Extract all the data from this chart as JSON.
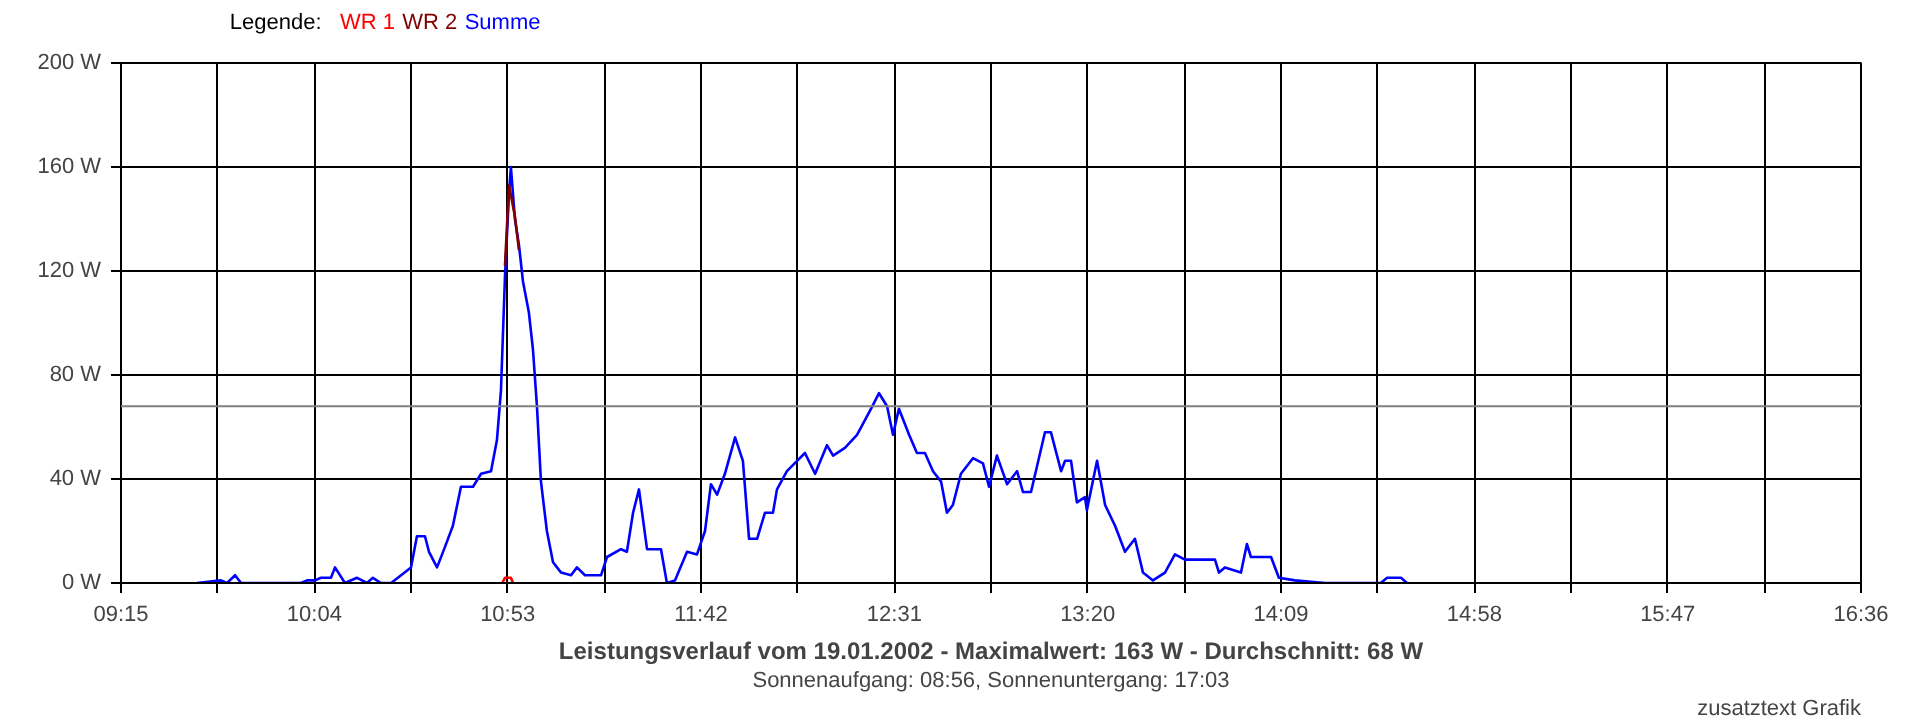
{
  "chart_data": {
    "type": "line",
    "title": "Leistungsverlauf vom 19.01.2002 - Maximalwert: 163 W - Durchschnitt: 68 W",
    "subtitle": "Sonnenaufgang: 08:56, Sonnenuntergang: 17:03",
    "legend_title": "Legende:",
    "annotations": [
      "zusatztext Grafik"
    ],
    "xlim": [
      9.25,
      16.6
    ],
    "ylim": [
      0,
      200
    ],
    "xticks": [
      {
        "value": 9.25,
        "label": "09:15"
      },
      {
        "value": 9.6583,
        "label": null
      },
      {
        "value": 10.0667,
        "label": "10:04"
      },
      {
        "value": 10.475,
        "label": null
      },
      {
        "value": 10.8833,
        "label": "10:53"
      },
      {
        "value": 11.2917,
        "label": null
      },
      {
        "value": 11.7,
        "label": "11:42"
      },
      {
        "value": 12.1083,
        "label": null
      },
      {
        "value": 12.5167,
        "label": "12:31"
      },
      {
        "value": 12.925,
        "label": null
      },
      {
        "value": 13.3333,
        "label": "13:20"
      },
      {
        "value": 13.7417,
        "label": null
      },
      {
        "value": 14.15,
        "label": "14:09"
      },
      {
        "value": 14.5583,
        "label": null
      },
      {
        "value": 14.9667,
        "label": "14:58"
      },
      {
        "value": 15.375,
        "label": null
      },
      {
        "value": 15.7833,
        "label": "15:47"
      },
      {
        "value": 16.1917,
        "label": null
      },
      {
        "value": 16.6,
        "label": "16:36"
      }
    ],
    "yticks": [
      {
        "value": 0,
        "label": "0 W"
      },
      {
        "value": 40,
        "label": "40 W"
      },
      {
        "value": 80,
        "label": "80 W"
      },
      {
        "value": 120,
        "label": "120 W"
      },
      {
        "value": 160,
        "label": "160 W"
      },
      {
        "value": 200,
        "label": "200 W"
      }
    ],
    "grid": true,
    "legend": "top left",
    "line_style": "solid",
    "ref_lines": [
      {
        "axis": "y",
        "value": 68,
        "color": "#808080"
      }
    ],
    "series": [
      {
        "name": "WR 1",
        "color": "#ff0000",
        "x": [
          10.86,
          10.872,
          10.897,
          10.906
        ],
        "values": [
          0,
          2,
          2,
          0
        ]
      },
      {
        "name": "WR 2",
        "color": "#800000",
        "x": [
          10.872,
          10.889,
          10.914,
          10.931
        ],
        "values": [
          122,
          153,
          141,
          128
        ]
      },
      {
        "name": "Summe",
        "color": "#0000ff",
        "x": [
          9.571,
          9.672,
          9.698,
          9.732,
          9.757,
          9.841,
          10.01,
          10.036,
          10.069,
          10.095,
          10.137,
          10.154,
          10.196,
          10.247,
          10.289,
          10.314,
          10.348,
          10.391,
          10.433,
          10.475,
          10.5,
          10.534,
          10.551,
          10.585,
          10.619,
          10.652,
          10.686,
          10.737,
          10.771,
          10.813,
          10.838,
          10.855,
          10.872,
          10.889,
          10.897,
          10.914,
          10.931,
          10.948,
          10.973,
          10.99,
          11.007,
          11.024,
          11.049,
          11.075,
          11.109,
          11.151,
          11.176,
          11.21,
          11.278,
          11.303,
          11.362,
          11.387,
          11.413,
          11.438,
          11.472,
          11.531,
          11.556,
          11.59,
          11.641,
          11.683,
          11.717,
          11.742,
          11.768,
          11.801,
          11.844,
          11.877,
          11.903,
          11.937,
          11.97,
          12.004,
          12.021,
          12.063,
          12.106,
          12.139,
          12.182,
          12.232,
          12.258,
          12.308,
          12.359,
          12.418,
          12.452,
          12.486,
          12.511,
          12.536,
          12.579,
          12.612,
          12.646,
          12.68,
          12.714,
          12.739,
          12.764,
          12.798,
          12.849,
          12.891,
          12.917,
          12.95,
          12.993,
          13.035,
          13.06,
          13.094,
          13.153,
          13.178,
          13.221,
          13.238,
          13.263,
          13.288,
          13.322,
          13.33,
          13.373,
          13.407,
          13.449,
          13.491,
          13.533,
          13.567,
          13.609,
          13.66,
          13.702,
          13.744,
          13.871,
          13.888,
          13.913,
          13.981,
          14.006,
          14.023,
          14.066,
          14.108,
          14.141,
          14.209,
          14.336,
          14.572,
          14.598,
          14.657,
          14.682
        ],
        "values": [
          0,
          1,
          0,
          3,
          0,
          0,
          0,
          1,
          1,
          2,
          2,
          6,
          0,
          2,
          0,
          2,
          0,
          0,
          3,
          6,
          18,
          18,
          12,
          6,
          14,
          22,
          37,
          37,
          42,
          43,
          55,
          74,
          118,
          150,
          160,
          140,
          130,
          116,
          104,
          90,
          68,
          39,
          20,
          8,
          4,
          3,
          6,
          3,
          3,
          10,
          13,
          12,
          27,
          36,
          13,
          13,
          0,
          1,
          12,
          11,
          20,
          38,
          34,
          42,
          56,
          47,
          17,
          17,
          27,
          27,
          36,
          43,
          47,
          50,
          42,
          53,
          49,
          52,
          57,
          67,
          73,
          68,
          57,
          67,
          57,
          50,
          50,
          43,
          39,
          27,
          30,
          42,
          48,
          46,
          37,
          49,
          38,
          43,
          35,
          35,
          58,
          58,
          43,
          47,
          47,
          31,
          33,
          28,
          47,
          30,
          22,
          12,
          17,
          4,
          1,
          4,
          11,
          9,
          9,
          4,
          6,
          4,
          15,
          10,
          10,
          10,
          2,
          1,
          0,
          0,
          2,
          2,
          0
        ]
      }
    ]
  }
}
